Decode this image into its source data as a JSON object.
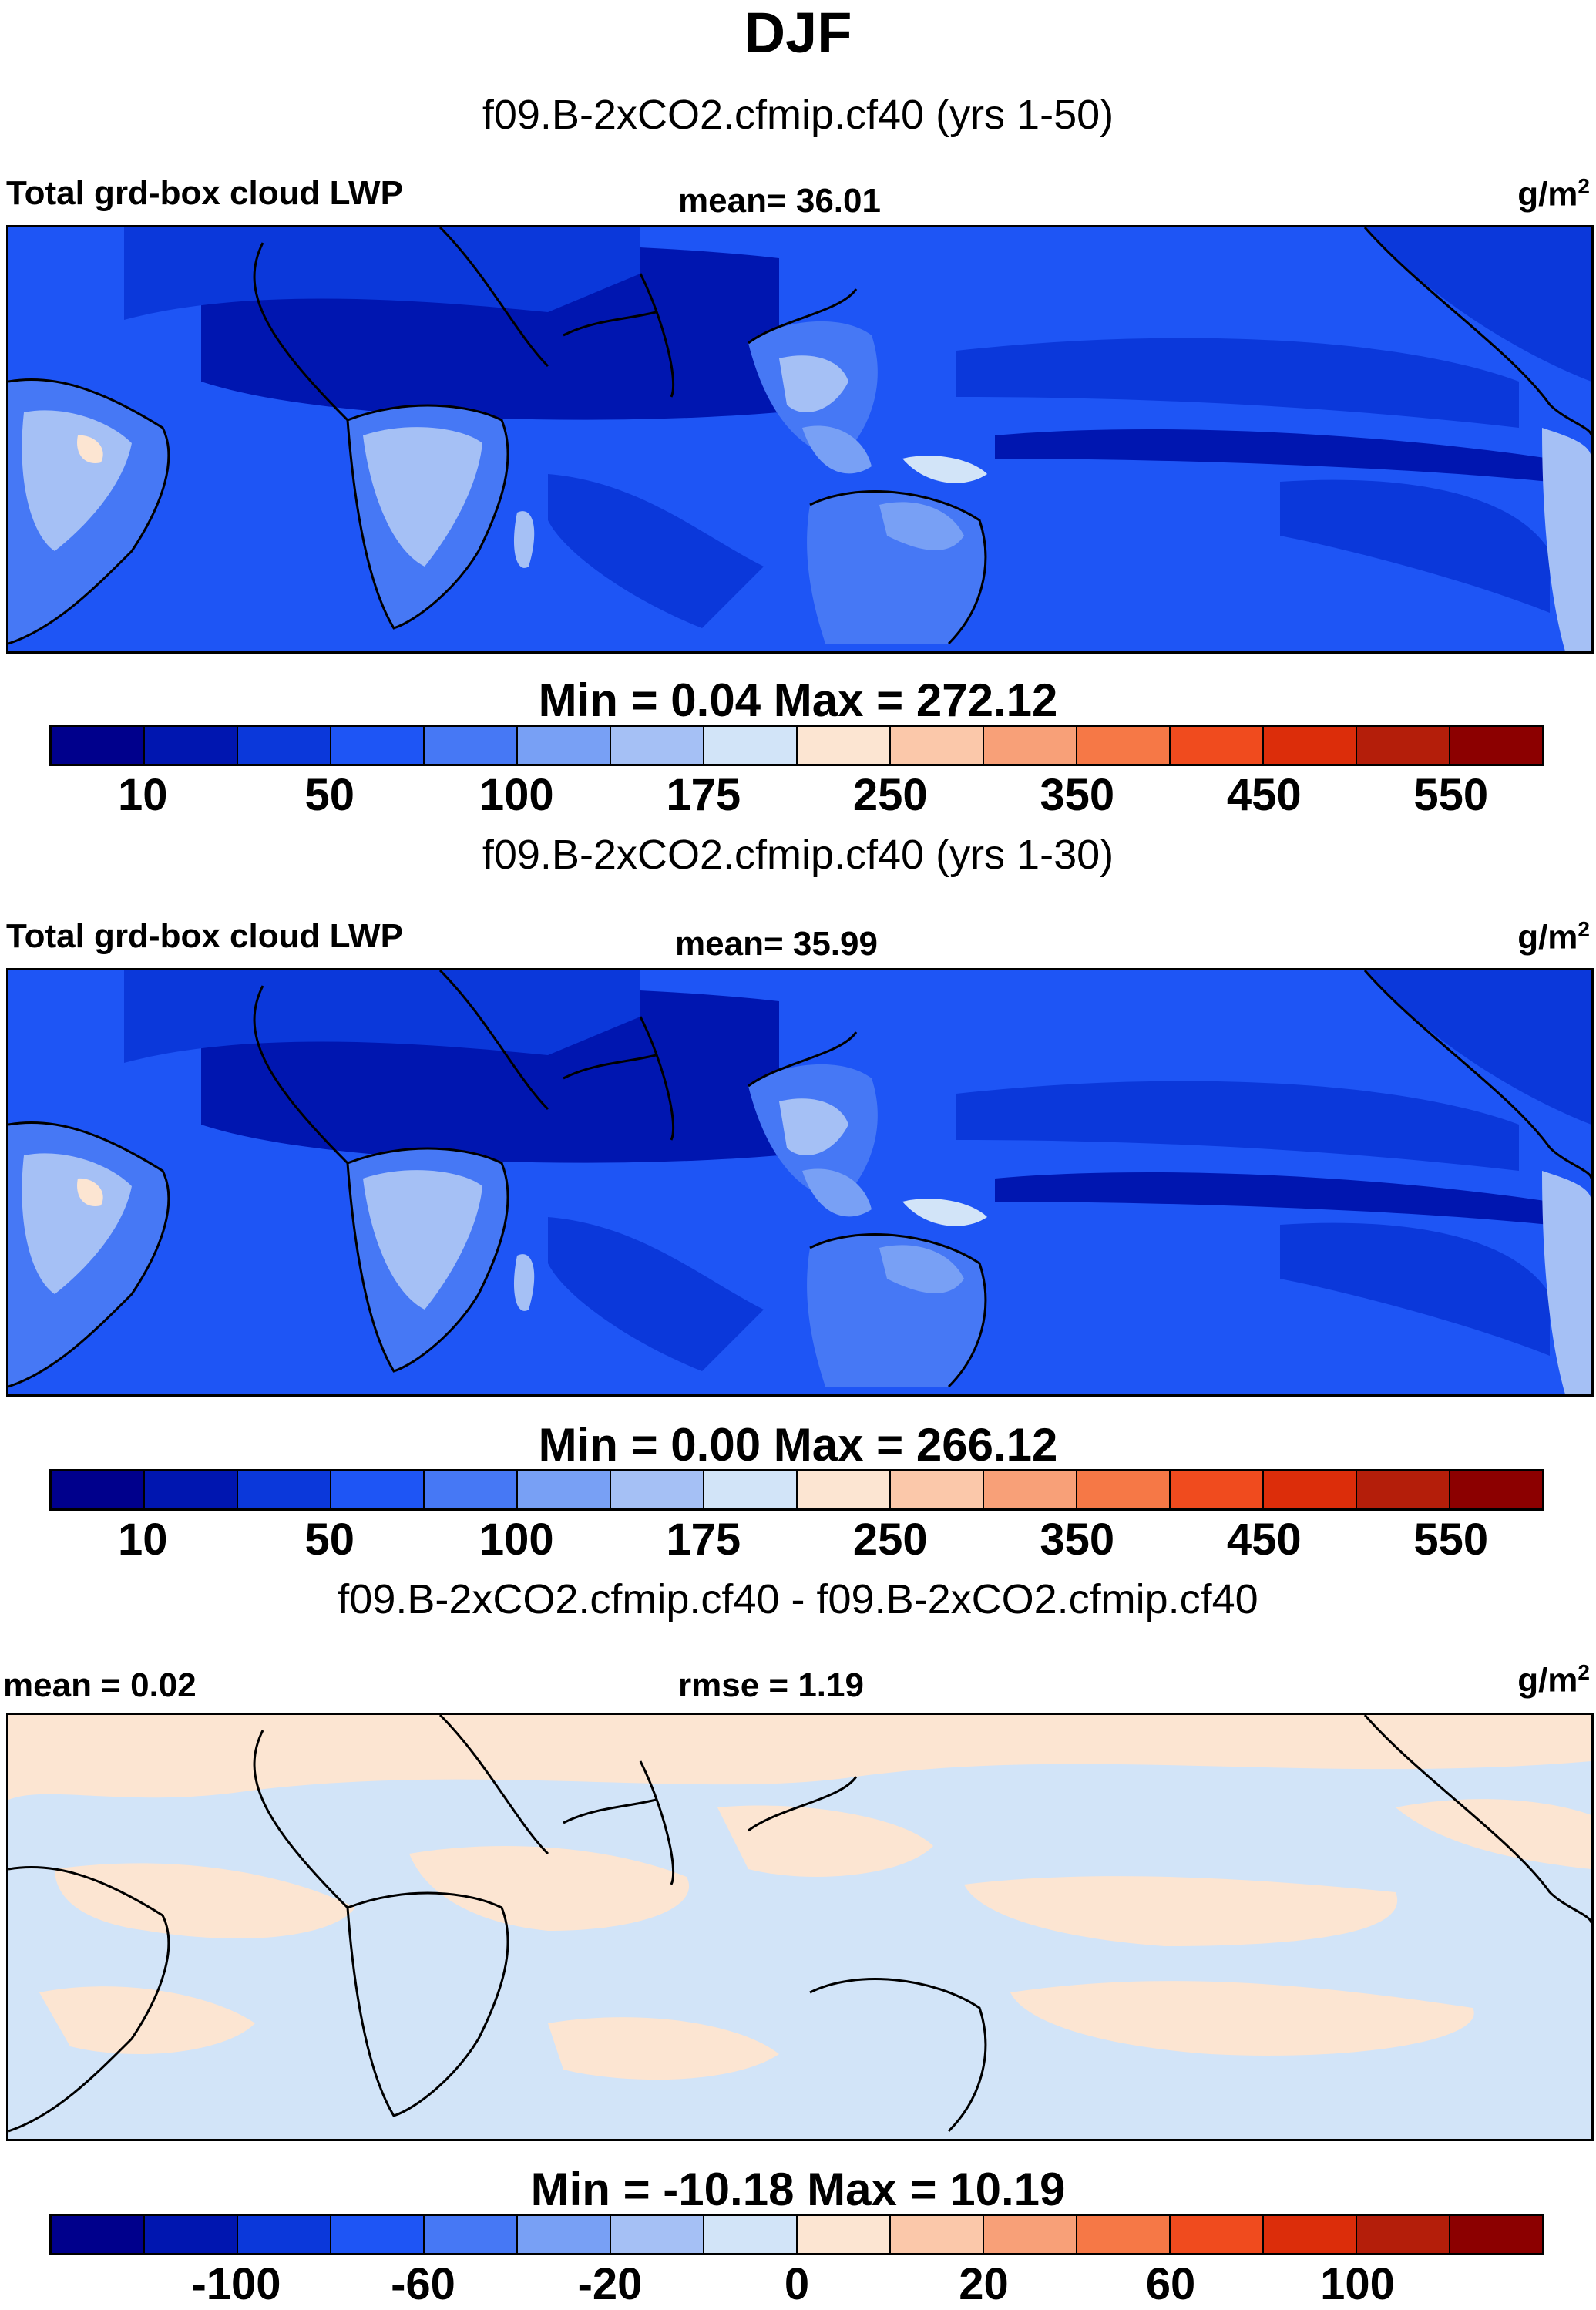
{
  "page": {
    "title": "DJF",
    "colors": [
      "#00008c",
      "#0016b0",
      "#0b38da",
      "#1e55f5",
      "#4678f5",
      "#78a0f5",
      "#a5c0f5",
      "#d2e4f8",
      "#fce5d2",
      "#fbc8aa",
      "#f8a078",
      "#f67846",
      "#f04b1e",
      "#dc2d0a",
      "#b41e0a",
      "#8c0000"
    ]
  },
  "panels": [
    {
      "subtitle": "f09.B-2xCO2.cfmip.cf40 (yrs 1-50)",
      "left_label": "Total grd-box cloud LWP",
      "center_label": "mean=  36.01",
      "unit": "g/m",
      "unit_sup": "2",
      "minmax": "Min =   0.04 Max = 272.12",
      "ticks": [
        "10",
        "50",
        "100",
        "175",
        "250",
        "350",
        "450",
        "550"
      ]
    },
    {
      "subtitle": "f09.B-2xCO2.cfmip.cf40 (yrs 1-30)",
      "left_label": "Total grd-box cloud LWP",
      "center_label": "mean=  35.99",
      "unit": "g/m",
      "unit_sup": "2",
      "minmax": "Min =   0.00 Max = 266.12",
      "ticks": [
        "10",
        "50",
        "100",
        "175",
        "250",
        "350",
        "450",
        "550"
      ]
    },
    {
      "subtitle": "f09.B-2xCO2.cfmip.cf40 - f09.B-2xCO2.cfmip.cf40",
      "left_label": "mean =   0.02",
      "center_label": "rmse =   1.19",
      "unit": "g/m",
      "unit_sup": "2",
      "minmax": "Min = -10.18 Max =  10.19",
      "ticks": [
        "-100",
        "-60",
        "-20",
        "0",
        "20",
        "60",
        "100"
      ]
    }
  ],
  "chart_data": [
    {
      "type": "heatmap",
      "title": "f09.B-2xCO2.cfmip.cf40 (yrs 1-50)",
      "variable": "Total grd-box cloud LWP",
      "units": "g/m2",
      "mean": 36.01,
      "min": 0.04,
      "max": 272.12,
      "colorbar_levels": [
        10,
        50,
        100,
        175,
        250,
        350,
        450,
        550
      ]
    },
    {
      "type": "heatmap",
      "title": "f09.B-2xCO2.cfmip.cf40 (yrs 1-30)",
      "variable": "Total grd-box cloud LWP",
      "units": "g/m2",
      "mean": 35.99,
      "min": 0.0,
      "max": 266.12,
      "colorbar_levels": [
        10,
        50,
        100,
        175,
        250,
        350,
        450,
        550
      ]
    },
    {
      "type": "heatmap",
      "title": "f09.B-2xCO2.cfmip.cf40 - f09.B-2xCO2.cfmip.cf40",
      "units": "g/m2",
      "mean": 0.02,
      "rmse": 1.19,
      "min": -10.18,
      "max": 10.19,
      "colorbar_levels": [
        -100,
        -60,
        -20,
        0,
        20,
        60,
        100
      ]
    }
  ]
}
